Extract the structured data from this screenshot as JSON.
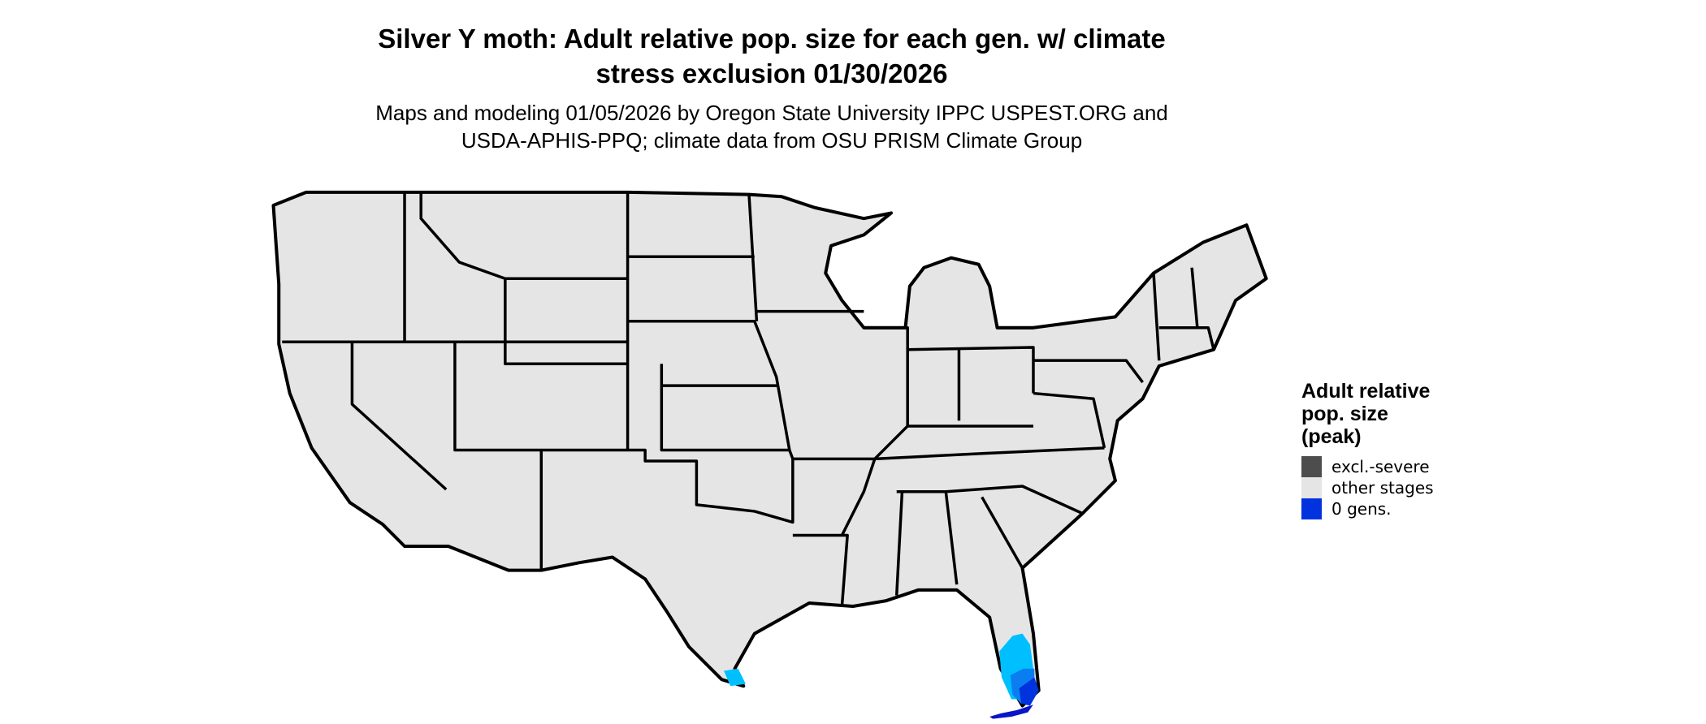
{
  "title": {
    "line1": "Silver Y moth: Adult relative pop. size for each gen. w/ climate",
    "line2": "stress exclusion 01/30/2026"
  },
  "subtitle": {
    "line1": "Maps and modeling 01/05/2026 by Oregon State University IPPC USPEST.ORG and",
    "line2": "USDA-APHIS-PPQ; climate data from OSU PRISM Climate Group"
  },
  "map": {
    "region": "Contiguous United States",
    "land_color": "#e5e5e5",
    "border_color": "#000000",
    "high_pop_color": "#00bfff",
    "mid_pop_color": "#0a7ef0",
    "low_pop_color": "#0033dd",
    "keys_color": "#0a14c8"
  },
  "legend": {
    "title_line1": "Adult relative",
    "title_line2": "pop. size",
    "title_line3": "(peak)",
    "items": [
      {
        "label": "excl.-severe",
        "color": "#4d4d4d"
      },
      {
        "label": "other stages",
        "color": "#e5e5e5"
      },
      {
        "label": "0 gens.",
        "color": "#0033dd"
      }
    ]
  }
}
